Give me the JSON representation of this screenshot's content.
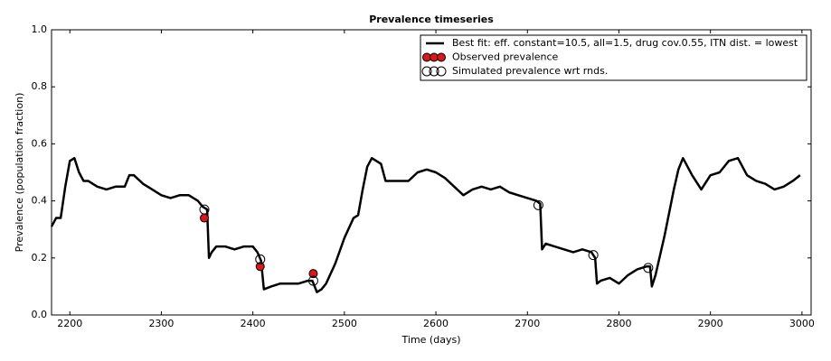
{
  "chart_data": {
    "type": "line",
    "title": "Prevalence timeseries",
    "x_label": "Time (days)",
    "y_label": "Prevalence (population fraction)",
    "xlim": [
      2180,
      3010
    ],
    "ylim": [
      0,
      1
    ],
    "xticks": [
      2200,
      2300,
      2400,
      2500,
      2600,
      2700,
      2800,
      2900,
      3000
    ],
    "yticks": [
      {
        "value": 0,
        "label": "0.0"
      },
      {
        "value": 0.2,
        "label": "0.2"
      },
      {
        "value": 0.4,
        "label": "0.4"
      },
      {
        "value": 0.6,
        "label": "0.6"
      },
      {
        "value": 0.8,
        "label": "0.8"
      },
      {
        "value": 1,
        "label": "1.0"
      }
    ],
    "legend": "upper right",
    "series": [
      {
        "name": "Best fit: eff. constant=10.5, all=1.5, drug cov.0.55, ITN dist. = lowest",
        "color": "#000000",
        "style": "line",
        "x": [
          2180,
          2185,
          2190,
          2195,
          2200,
          2205,
          2210,
          2215,
          2220,
          2230,
          2240,
          2250,
          2260,
          2265,
          2270,
          2280,
          2290,
          2300,
          2310,
          2320,
          2330,
          2340,
          2345,
          2350,
          2352,
          2355,
          2360,
          2370,
          2380,
          2390,
          2400,
          2405,
          2409,
          2412,
          2420,
          2430,
          2440,
          2450,
          2460,
          2465,
          2470,
          2475,
          2480,
          2490,
          2500,
          2510,
          2515,
          2520,
          2525,
          2530,
          2540,
          2545,
          2550,
          2560,
          2570,
          2580,
          2590,
          2600,
          2610,
          2620,
          2630,
          2640,
          2650,
          2660,
          2670,
          2680,
          2690,
          2700,
          2710,
          2714,
          2716,
          2720,
          2730,
          2740,
          2750,
          2760,
          2770,
          2774,
          2776,
          2780,
          2790,
          2800,
          2810,
          2820,
          2830,
          2834,
          2836,
          2840,
          2850,
          2860,
          2865,
          2870,
          2880,
          2890,
          2900,
          2910,
          2920,
          2930,
          2940,
          2950,
          2960,
          2970,
          2980,
          2990,
          2998
        ],
        "values": [
          0.31,
          0.34,
          0.34,
          0.45,
          0.54,
          0.55,
          0.5,
          0.47,
          0.47,
          0.45,
          0.44,
          0.45,
          0.45,
          0.49,
          0.49,
          0.46,
          0.44,
          0.42,
          0.41,
          0.42,
          0.42,
          0.4,
          0.38,
          0.37,
          0.2,
          0.22,
          0.24,
          0.24,
          0.23,
          0.24,
          0.24,
          0.22,
          0.19,
          0.09,
          0.1,
          0.11,
          0.11,
          0.11,
          0.12,
          0.12,
          0.08,
          0.09,
          0.11,
          0.18,
          0.27,
          0.34,
          0.35,
          0.44,
          0.52,
          0.55,
          0.53,
          0.47,
          0.47,
          0.47,
          0.47,
          0.5,
          0.51,
          0.5,
          0.48,
          0.45,
          0.42,
          0.44,
          0.45,
          0.44,
          0.45,
          0.43,
          0.42,
          0.41,
          0.4,
          0.39,
          0.23,
          0.25,
          0.24,
          0.23,
          0.22,
          0.23,
          0.22,
          0.2,
          0.11,
          0.12,
          0.13,
          0.11,
          0.14,
          0.16,
          0.17,
          0.17,
          0.1,
          0.14,
          0.28,
          0.44,
          0.51,
          0.55,
          0.49,
          0.44,
          0.49,
          0.5,
          0.54,
          0.55,
          0.49,
          0.47,
          0.46,
          0.44,
          0.45,
          0.47,
          0.49
        ]
      },
      {
        "name": "Observed prevalence",
        "color": "#d7191c",
        "style": "filled",
        "x": [
          2347,
          2408,
          2466
        ],
        "values": [
          0.34,
          0.17,
          0.145
        ]
      },
      {
        "name": "Simulated prevalence wrt rnds.",
        "color": "#000000",
        "style": "open",
        "x": [
          2347,
          2408,
          2466,
          2712,
          2772,
          2832
        ],
        "values": [
          0.37,
          0.195,
          0.12,
          0.385,
          0.21,
          0.165
        ]
      }
    ]
  }
}
